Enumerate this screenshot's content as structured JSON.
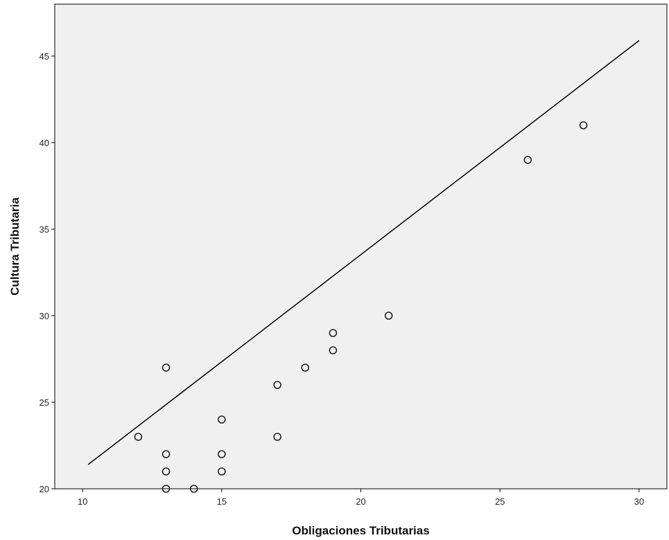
{
  "chart_data": {
    "type": "scatter",
    "title": "",
    "xlabel": "Obligaciones Tributarias",
    "ylabel": "Cultura Tributaria",
    "xlim": [
      9,
      31
    ],
    "ylim": [
      20,
      48
    ],
    "xticks": [
      10,
      15,
      20,
      25,
      30
    ],
    "yticks": [
      20,
      25,
      30,
      35,
      40,
      45
    ],
    "grid": false,
    "background_color": "#f0f0f0",
    "marker": "open-circle",
    "points": [
      {
        "x": 12,
        "y": 23
      },
      {
        "x": 13,
        "y": 27
      },
      {
        "x": 13,
        "y": 22
      },
      {
        "x": 13,
        "y": 21
      },
      {
        "x": 13,
        "y": 20
      },
      {
        "x": 14,
        "y": 20
      },
      {
        "x": 15,
        "y": 24
      },
      {
        "x": 15,
        "y": 22
      },
      {
        "x": 15,
        "y": 21
      },
      {
        "x": 17,
        "y": 26
      },
      {
        "x": 17,
        "y": 23
      },
      {
        "x": 18,
        "y": 27
      },
      {
        "x": 19,
        "y": 29
      },
      {
        "x": 19,
        "y": 28
      },
      {
        "x": 21,
        "y": 30
      },
      {
        "x": 26,
        "y": 39
      },
      {
        "x": 28,
        "y": 41
      }
    ],
    "reference_line": {
      "x": [
        10.2,
        30
      ],
      "y": [
        21.4,
        45.9
      ]
    }
  }
}
